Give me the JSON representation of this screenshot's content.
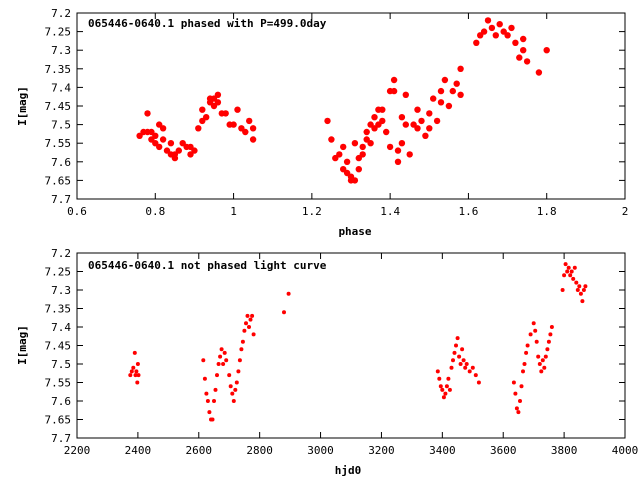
{
  "chart_data": [
    {
      "type": "scatter",
      "title": "065446-0640.1 phased with P=499.0day",
      "xlabel": "phase",
      "ylabel": "I[mag]",
      "xlim": [
        0.6,
        2.0
      ],
      "ylim": [
        7.7,
        7.2
      ],
      "y_inverted": true,
      "x_ticks": [
        0.6,
        0.8,
        1.0,
        1.2,
        1.4,
        1.6,
        1.8,
        2.0
      ],
      "x_tick_labels": [
        "0.6",
        "0.8",
        "1",
        "1.2",
        "1.4",
        "1.6",
        "1.8",
        "2"
      ],
      "y_ticks": [
        7.2,
        7.25,
        7.3,
        7.35,
        7.4,
        7.45,
        7.5,
        7.55,
        7.6,
        7.65,
        7.7
      ],
      "y_tick_labels": [
        "7.2",
        "7.25",
        "7.3",
        "7.35",
        "7.4",
        "7.45",
        "7.5",
        "7.55",
        "7.6",
        "7.65",
        "7.7"
      ],
      "grid": false,
      "legend": "none",
      "marker": "filled-circle",
      "color": "#ff0000",
      "points": [
        [
          0.76,
          7.53
        ],
        [
          0.77,
          7.52
        ],
        [
          0.78,
          7.52
        ],
        [
          0.78,
          7.47
        ],
        [
          0.79,
          7.54
        ],
        [
          0.79,
          7.52
        ],
        [
          0.8,
          7.55
        ],
        [
          0.8,
          7.53
        ],
        [
          0.81,
          7.5
        ],
        [
          0.81,
          7.56
        ],
        [
          0.82,
          7.54
        ],
        [
          0.82,
          7.51
        ],
        [
          0.83,
          7.57
        ],
        [
          0.84,
          7.58
        ],
        [
          0.84,
          7.55
        ],
        [
          0.85,
          7.58
        ],
        [
          0.85,
          7.59
        ],
        [
          0.86,
          7.57
        ],
        [
          0.87,
          7.55
        ],
        [
          0.88,
          7.56
        ],
        [
          0.89,
          7.58
        ],
        [
          0.89,
          7.56
        ],
        [
          0.9,
          7.57
        ],
        [
          0.91,
          7.51
        ],
        [
          0.92,
          7.49
        ],
        [
          0.92,
          7.46
        ],
        [
          0.93,
          7.48
        ],
        [
          0.94,
          7.43
        ],
        [
          0.94,
          7.44
        ],
        [
          0.95,
          7.43
        ],
        [
          0.95,
          7.45
        ],
        [
          0.96,
          7.42
        ],
        [
          0.96,
          7.44
        ],
        [
          0.97,
          7.47
        ],
        [
          0.98,
          7.47
        ],
        [
          0.99,
          7.5
        ],
        [
          1.0,
          7.5
        ],
        [
          1.01,
          7.46
        ],
        [
          1.02,
          7.51
        ],
        [
          1.03,
          7.52
        ],
        [
          1.04,
          7.49
        ],
        [
          1.05,
          7.51
        ],
        [
          1.05,
          7.54
        ],
        [
          1.24,
          7.49
        ],
        [
          1.25,
          7.54
        ],
        [
          1.26,
          7.59
        ],
        [
          1.27,
          7.58
        ],
        [
          1.28,
          7.62
        ],
        [
          1.28,
          7.56
        ],
        [
          1.29,
          7.63
        ],
        [
          1.29,
          7.6
        ],
        [
          1.3,
          7.64
        ],
        [
          1.3,
          7.65
        ],
        [
          1.31,
          7.55
        ],
        [
          1.31,
          7.65
        ],
        [
          1.32,
          7.62
        ],
        [
          1.32,
          7.59
        ],
        [
          1.33,
          7.58
        ],
        [
          1.33,
          7.56
        ],
        [
          1.34,
          7.54
        ],
        [
          1.34,
          7.52
        ],
        [
          1.35,
          7.55
        ],
        [
          1.35,
          7.5
        ],
        [
          1.36,
          7.51
        ],
        [
          1.36,
          7.48
        ],
        [
          1.37,
          7.46
        ],
        [
          1.37,
          7.5
        ],
        [
          1.38,
          7.46
        ],
        [
          1.38,
          7.49
        ],
        [
          1.39,
          7.52
        ],
        [
          1.4,
          7.41
        ],
        [
          1.4,
          7.56
        ],
        [
          1.41,
          7.38
        ],
        [
          1.41,
          7.41
        ],
        [
          1.42,
          7.57
        ],
        [
          1.42,
          7.6
        ],
        [
          1.43,
          7.55
        ],
        [
          1.43,
          7.48
        ],
        [
          1.44,
          7.42
        ],
        [
          1.44,
          7.5
        ],
        [
          1.45,
          7.58
        ],
        [
          1.46,
          7.5
        ],
        [
          1.47,
          7.51
        ],
        [
          1.47,
          7.46
        ],
        [
          1.48,
          7.49
        ],
        [
          1.49,
          7.53
        ],
        [
          1.5,
          7.47
        ],
        [
          1.5,
          7.51
        ],
        [
          1.51,
          7.43
        ],
        [
          1.52,
          7.49
        ],
        [
          1.53,
          7.41
        ],
        [
          1.53,
          7.44
        ],
        [
          1.54,
          7.38
        ],
        [
          1.55,
          7.45
        ],
        [
          1.56,
          7.41
        ],
        [
          1.57,
          7.39
        ],
        [
          1.58,
          7.42
        ],
        [
          1.58,
          7.35
        ],
        [
          1.62,
          7.28
        ],
        [
          1.63,
          7.26
        ],
        [
          1.64,
          7.25
        ],
        [
          1.65,
          7.22
        ],
        [
          1.66,
          7.24
        ],
        [
          1.67,
          7.26
        ],
        [
          1.68,
          7.23
        ],
        [
          1.69,
          7.25
        ],
        [
          1.7,
          7.26
        ],
        [
          1.71,
          7.24
        ],
        [
          1.72,
          7.28
        ],
        [
          1.73,
          7.32
        ],
        [
          1.74,
          7.27
        ],
        [
          1.74,
          7.3
        ],
        [
          1.75,
          7.33
        ],
        [
          1.78,
          7.36
        ],
        [
          1.8,
          7.3
        ]
      ]
    },
    {
      "type": "scatter",
      "title": "065446-0640.1 not phased light curve",
      "xlabel": "hjd0",
      "ylabel": "I[mag]",
      "xlim": [
        2200,
        4000
      ],
      "ylim": [
        7.7,
        7.2
      ],
      "y_inverted": true,
      "x_ticks": [
        2200,
        2400,
        2600,
        2800,
        3000,
        3200,
        3400,
        3600,
        3800,
        4000
      ],
      "x_tick_labels": [
        "2200",
        "2400",
        "2600",
        "2800",
        "3000",
        "3200",
        "3400",
        "3600",
        "3800",
        "4000"
      ],
      "y_ticks": [
        7.2,
        7.25,
        7.3,
        7.35,
        7.4,
        7.45,
        7.5,
        7.55,
        7.6,
        7.65,
        7.7
      ],
      "y_tick_labels": [
        "7.2",
        "7.25",
        "7.3",
        "7.35",
        "7.4",
        "7.45",
        "7.5",
        "7.55",
        "7.6",
        "7.65",
        "7.7"
      ],
      "grid": false,
      "legend": "none",
      "marker": "small-filled-circle",
      "color": "#ff0000",
      "points": [
        [
          2375,
          7.53
        ],
        [
          2380,
          7.52
        ],
        [
          2385,
          7.51
        ],
        [
          2390,
          7.47
        ],
        [
          2392,
          7.53
        ],
        [
          2395,
          7.52
        ],
        [
          2398,
          7.55
        ],
        [
          2400,
          7.5
        ],
        [
          2402,
          7.53
        ],
        [
          2615,
          7.49
        ],
        [
          2620,
          7.54
        ],
        [
          2625,
          7.58
        ],
        [
          2630,
          7.6
        ],
        [
          2635,
          7.63
        ],
        [
          2640,
          7.65
        ],
        [
          2645,
          7.65
        ],
        [
          2650,
          7.6
        ],
        [
          2655,
          7.57
        ],
        [
          2660,
          7.53
        ],
        [
          2665,
          7.5
        ],
        [
          2670,
          7.48
        ],
        [
          2675,
          7.46
        ],
        [
          2680,
          7.5
        ],
        [
          2685,
          7.47
        ],
        [
          2690,
          7.49
        ],
        [
          2700,
          7.53
        ],
        [
          2705,
          7.56
        ],
        [
          2710,
          7.58
        ],
        [
          2715,
          7.6
        ],
        [
          2720,
          7.57
        ],
        [
          2725,
          7.55
        ],
        [
          2730,
          7.52
        ],
        [
          2735,
          7.49
        ],
        [
          2740,
          7.46
        ],
        [
          2745,
          7.44
        ],
        [
          2750,
          7.41
        ],
        [
          2755,
          7.39
        ],
        [
          2760,
          7.37
        ],
        [
          2765,
          7.4
        ],
        [
          2770,
          7.38
        ],
        [
          2775,
          7.37
        ],
        [
          2780,
          7.42
        ],
        [
          2880,
          7.36
        ],
        [
          2895,
          7.31
        ],
        [
          3385,
          7.52
        ],
        [
          3390,
          7.54
        ],
        [
          3395,
          7.56
        ],
        [
          3400,
          7.57
        ],
        [
          3405,
          7.59
        ],
        [
          3410,
          7.58
        ],
        [
          3415,
          7.56
        ],
        [
          3420,
          7.54
        ],
        [
          3425,
          7.57
        ],
        [
          3430,
          7.51
        ],
        [
          3435,
          7.49
        ],
        [
          3440,
          7.47
        ],
        [
          3445,
          7.45
        ],
        [
          3450,
          7.43
        ],
        [
          3455,
          7.48
        ],
        [
          3460,
          7.5
        ],
        [
          3465,
          7.46
        ],
        [
          3470,
          7.49
        ],
        [
          3475,
          7.51
        ],
        [
          3480,
          7.5
        ],
        [
          3490,
          7.52
        ],
        [
          3500,
          7.51
        ],
        [
          3510,
          7.53
        ],
        [
          3520,
          7.55
        ],
        [
          3635,
          7.55
        ],
        [
          3640,
          7.58
        ],
        [
          3645,
          7.62
        ],
        [
          3650,
          7.63
        ],
        [
          3655,
          7.6
        ],
        [
          3660,
          7.56
        ],
        [
          3665,
          7.52
        ],
        [
          3670,
          7.5
        ],
        [
          3675,
          7.47
        ],
        [
          3680,
          7.45
        ],
        [
          3690,
          7.42
        ],
        [
          3700,
          7.39
        ],
        [
          3705,
          7.41
        ],
        [
          3710,
          7.44
        ],
        [
          3715,
          7.48
        ],
        [
          3720,
          7.5
        ],
        [
          3725,
          7.52
        ],
        [
          3730,
          7.49
        ],
        [
          3735,
          7.51
        ],
        [
          3740,
          7.48
        ],
        [
          3745,
          7.46
        ],
        [
          3750,
          7.44
        ],
        [
          3755,
          7.42
        ],
        [
          3760,
          7.4
        ],
        [
          3795,
          7.3
        ],
        [
          3800,
          7.26
        ],
        [
          3805,
          7.23
        ],
        [
          3810,
          7.25
        ],
        [
          3815,
          7.24
        ],
        [
          3820,
          7.26
        ],
        [
          3825,
          7.25
        ],
        [
          3830,
          7.27
        ],
        [
          3835,
          7.24
        ],
        [
          3840,
          7.28
        ],
        [
          3845,
          7.3
        ],
        [
          3850,
          7.29
        ],
        [
          3855,
          7.31
        ],
        [
          3860,
          7.33
        ],
        [
          3865,
          7.3
        ],
        [
          3870,
          7.29
        ]
      ]
    }
  ]
}
